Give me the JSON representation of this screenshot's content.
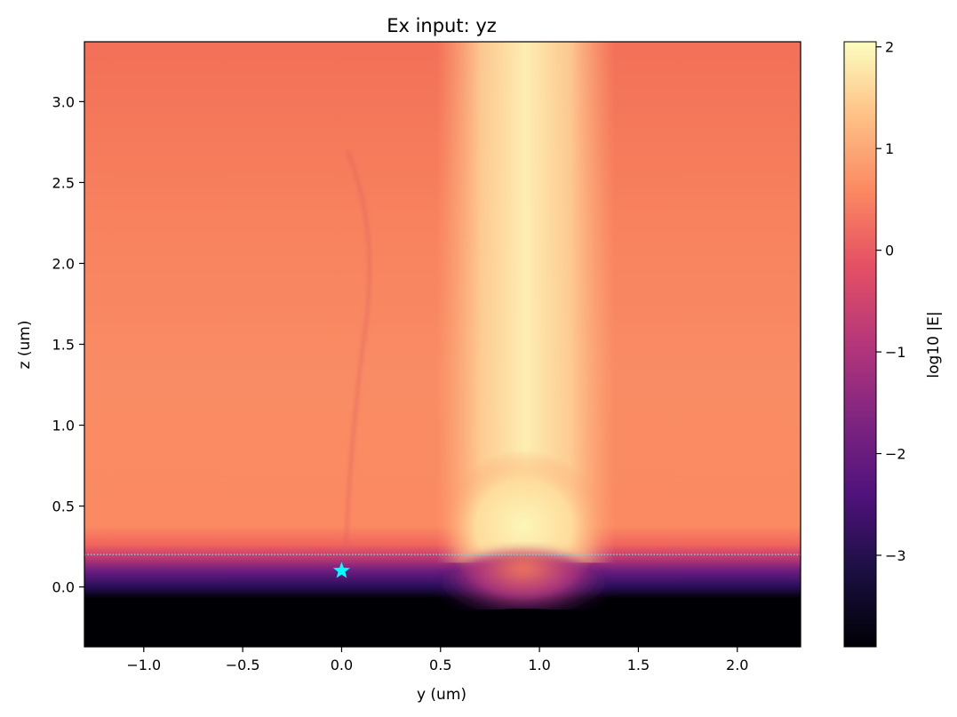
{
  "chart_data": {
    "type": "heatmap",
    "title": "Ex input: yz",
    "xlabel": "y (um)",
    "ylabel": "z (um)",
    "xlim": [
      -1.3,
      2.32
    ],
    "ylim": [
      -0.37,
      3.37
    ],
    "x_ticks": [
      -1.0,
      -0.5,
      0.0,
      0.5,
      1.0,
      1.5,
      2.0
    ],
    "x_tick_labels": [
      "−1.0",
      "−0.5",
      "0.0",
      "0.5",
      "1.0",
      "1.5",
      "2.0"
    ],
    "y_ticks": [
      0.0,
      0.5,
      1.0,
      1.5,
      2.0,
      2.5,
      3.0
    ],
    "y_tick_labels": [
      "0.0",
      "0.5",
      "1.0",
      "1.5",
      "2.0",
      "2.5",
      "3.0"
    ],
    "colormap": "magma",
    "colorbar": {
      "label": "log10 |E|",
      "range": [
        -3.9,
        2.05
      ],
      "ticks": [
        -3,
        -2,
        -1,
        0,
        1,
        2
      ],
      "tick_labels": [
        "−3",
        "−2",
        "−1",
        "0",
        "1",
        "2"
      ]
    },
    "annotations": {
      "dotted_line_z": 0.2,
      "dotted_line_color": "#7fd3e6",
      "star_marker": {
        "y": 0.0,
        "z": 0.1,
        "color": "#00ffff"
      }
    }
  }
}
